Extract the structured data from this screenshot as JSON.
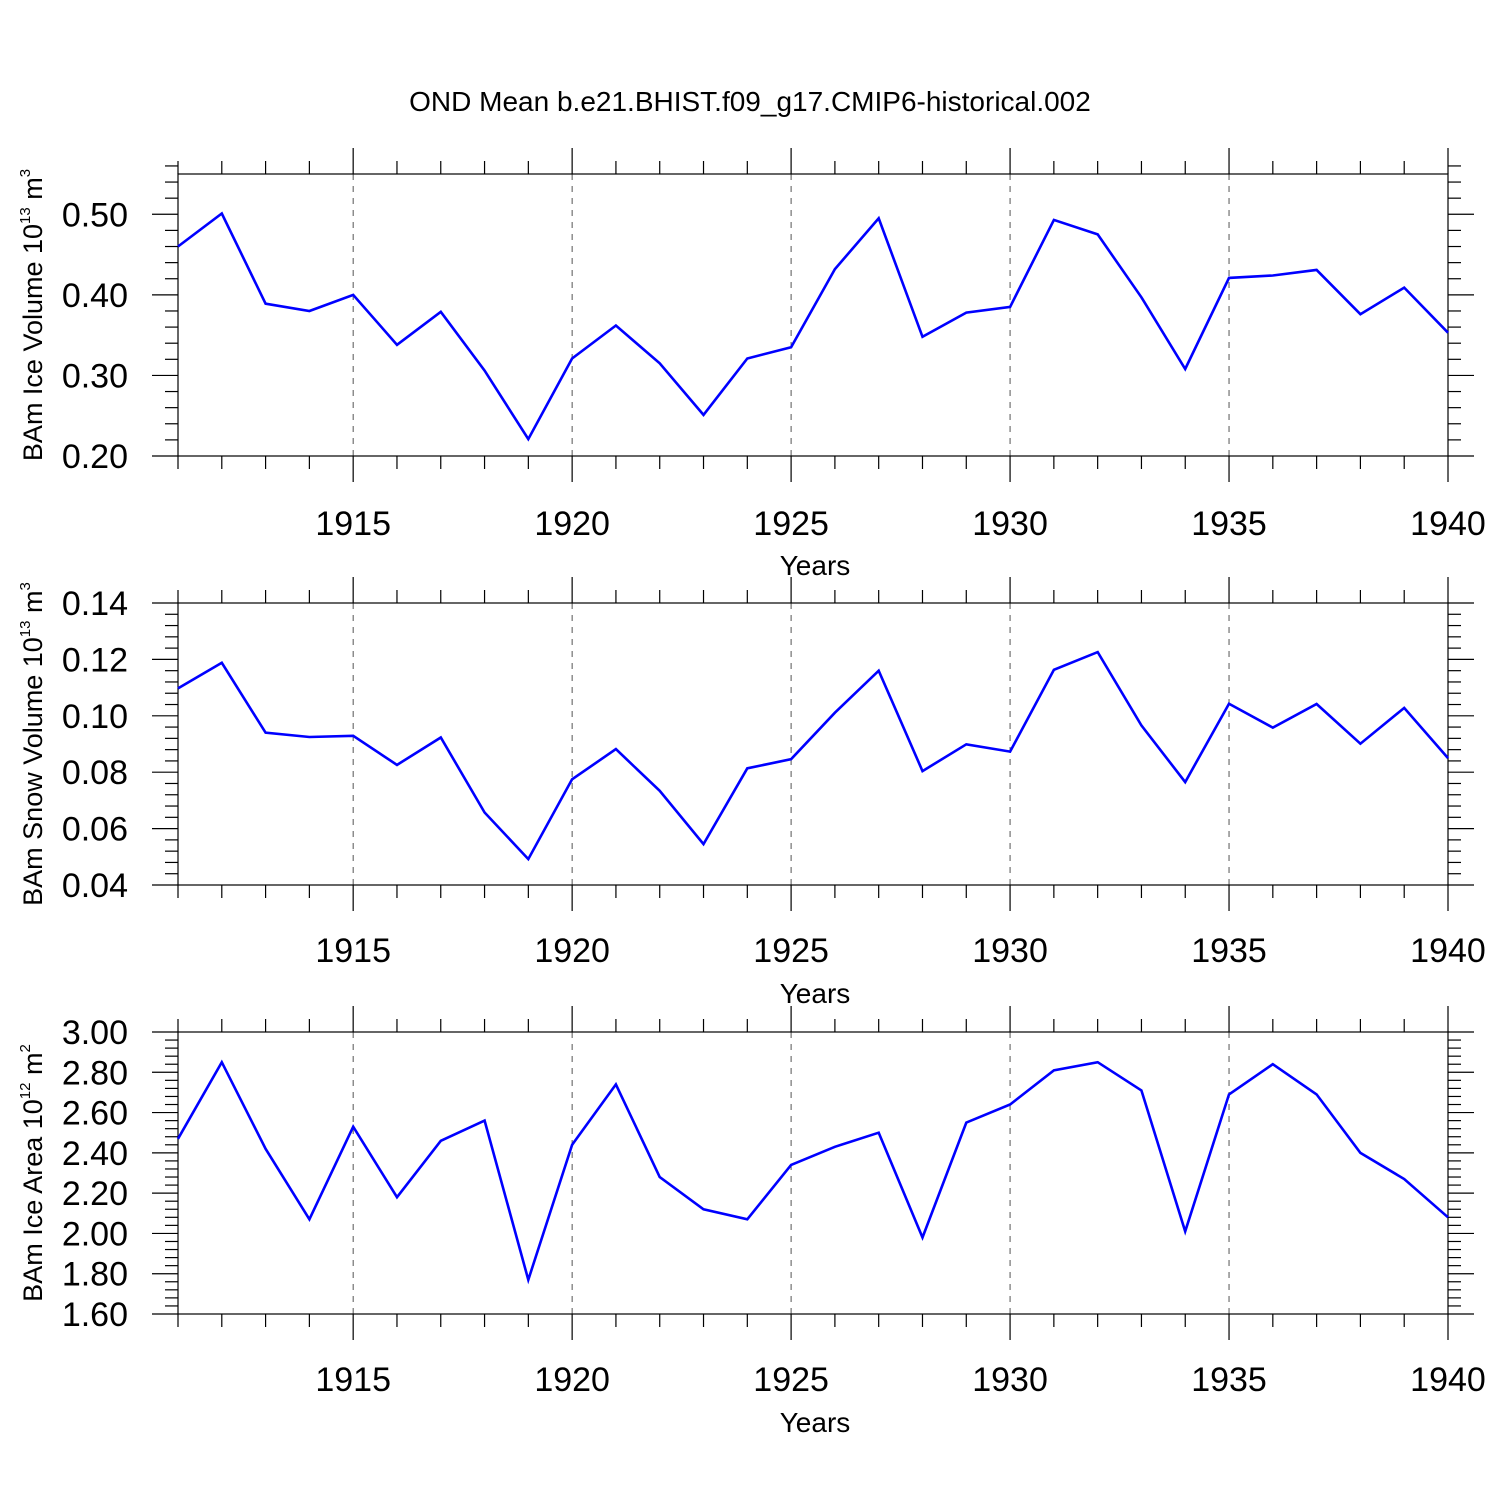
{
  "figure": {
    "title": "OND Mean b.e21.BHIST.f09_g17.CMIP6-historical.002",
    "line_color": "#0000ff"
  },
  "chart_data": [
    {
      "type": "line",
      "ylabel_parts": {
        "main": "BAm Ice Volume 10",
        "exp": "13",
        "unit": " m",
        "unit_exp": "3"
      },
      "xlabel": "Years",
      "xlim": [
        1911,
        1940
      ],
      "ylim": [
        0.2,
        0.55
      ],
      "yticks": [
        0.2,
        0.3,
        0.4,
        0.5
      ],
      "ytick_labels": [
        "0.20",
        "0.30",
        "0.40",
        "0.50"
      ],
      "xticks": [
        1915,
        1920,
        1925,
        1930,
        1935,
        1940
      ],
      "xtick_labels": [
        "1915",
        "1920",
        "1925",
        "1930",
        "1935",
        "1940"
      ],
      "x": [
        1911,
        1912,
        1913,
        1914,
        1915,
        1916,
        1917,
        1918,
        1919,
        1920,
        1921,
        1922,
        1923,
        1924,
        1925,
        1926,
        1927,
        1928,
        1929,
        1930,
        1931,
        1932,
        1933,
        1934,
        1935,
        1936,
        1937,
        1938,
        1939,
        1940
      ],
      "values": [
        0.46,
        0.501,
        0.389,
        0.38,
        0.4,
        0.338,
        0.379,
        0.306,
        0.221,
        0.321,
        0.362,
        0.315,
        0.251,
        0.321,
        0.335,
        0.432,
        0.495,
        0.348,
        0.378,
        0.385,
        0.493,
        0.475,
        0.397,
        0.308,
        0.421,
        0.424,
        0.431,
        0.376,
        0.409,
        0.353
      ]
    },
    {
      "type": "line",
      "ylabel_parts": {
        "main": "BAm Snow Volume 10",
        "exp": "13",
        "unit": " m",
        "unit_exp": "3"
      },
      "xlabel": "Years",
      "xlim": [
        1911,
        1940
      ],
      "ylim": [
        0.04,
        0.14
      ],
      "yticks": [
        0.04,
        0.06,
        0.08,
        0.1,
        0.12,
        0.14
      ],
      "ytick_labels": [
        "0.04",
        "0.06",
        "0.08",
        "0.10",
        "0.12",
        "0.14"
      ],
      "xticks": [
        1915,
        1920,
        1925,
        1930,
        1935,
        1940
      ],
      "xtick_labels": [
        "1915",
        "1920",
        "1925",
        "1930",
        "1935",
        "1940"
      ],
      "x": [
        1911,
        1912,
        1913,
        1914,
        1915,
        1916,
        1917,
        1918,
        1919,
        1920,
        1921,
        1922,
        1923,
        1924,
        1925,
        1926,
        1927,
        1928,
        1929,
        1930,
        1931,
        1932,
        1933,
        1934,
        1935,
        1936,
        1937,
        1938,
        1939,
        1940
      ],
      "values": [
        0.1097,
        0.1188,
        0.094,
        0.0925,
        0.0929,
        0.0826,
        0.0923,
        0.0657,
        0.0492,
        0.0775,
        0.0882,
        0.0734,
        0.0545,
        0.0814,
        0.0846,
        0.1011,
        0.116,
        0.0804,
        0.0899,
        0.0873,
        0.1163,
        0.1226,
        0.0966,
        0.0765,
        0.1043,
        0.0958,
        0.1042,
        0.0901,
        0.1028,
        0.085
      ]
    },
    {
      "type": "line",
      "ylabel_parts": {
        "main": "BAm Ice Area 10",
        "exp": "12",
        "unit": " m",
        "unit_exp": "2"
      },
      "xlabel": "Years",
      "xlim": [
        1911,
        1940
      ],
      "ylim": [
        1.6,
        3.0
      ],
      "yticks": [
        1.6,
        1.8,
        2.0,
        2.2,
        2.4,
        2.6,
        2.8,
        3.0
      ],
      "ytick_labels": [
        "1.60",
        "1.80",
        "2.00",
        "2.20",
        "2.40",
        "2.60",
        "2.80",
        "3.00"
      ],
      "xticks": [
        1915,
        1920,
        1925,
        1930,
        1935,
        1940
      ],
      "xtick_labels": [
        "1915",
        "1920",
        "1925",
        "1930",
        "1935",
        "1940"
      ],
      "x": [
        1911,
        1912,
        1913,
        1914,
        1915,
        1916,
        1917,
        1918,
        1919,
        1920,
        1921,
        1922,
        1923,
        1924,
        1925,
        1926,
        1927,
        1928,
        1929,
        1930,
        1931,
        1932,
        1933,
        1934,
        1935,
        1936,
        1937,
        1938,
        1939,
        1940
      ],
      "values": [
        2.47,
        2.85,
        2.42,
        2.07,
        2.53,
        2.18,
        2.46,
        2.56,
        1.77,
        2.44,
        2.74,
        2.28,
        2.12,
        2.07,
        2.34,
        2.43,
        2.5,
        1.98,
        2.55,
        2.64,
        2.81,
        2.85,
        2.71,
        2.01,
        2.69,
        2.84,
        2.69,
        2.4,
        2.27,
        2.08
      ]
    }
  ]
}
